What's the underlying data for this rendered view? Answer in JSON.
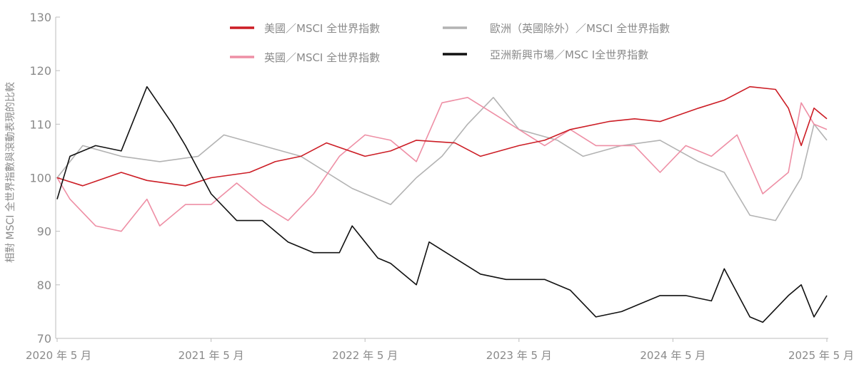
{
  "chart_data": {
    "type": "line",
    "ylabel": "相對 MSCI 全世界指數與滾動表現的比較",
    "ylim": [
      70,
      130
    ],
    "yticks": [
      70,
      80,
      90,
      100,
      110,
      120,
      130
    ],
    "x_start": "2020-05",
    "x_end": "2025-05",
    "xticks": [
      "2020 年 5 月",
      "2021 年 5 月",
      "2022 年 5 月",
      "2023 年 5 月",
      "2024 年 5 月",
      "2025 年 5 月"
    ],
    "grid": false,
    "legend_position": "top-center",
    "series": [
      {
        "name": "美國／MSCI 全世界指數",
        "color": "#cc1d25",
        "x": [
          "2020-05",
          "2020-07",
          "2020-10",
          "2020-12",
          "2021-03",
          "2021-05",
          "2021-08",
          "2021-10",
          "2021-12",
          "2022-02",
          "2022-05",
          "2022-07",
          "2022-09",
          "2022-12",
          "2023-02",
          "2023-05",
          "2023-07",
          "2023-09",
          "2023-12",
          "2024-02",
          "2024-04",
          "2024-07",
          "2024-09",
          "2024-11",
          "2025-01",
          "2025-02",
          "2025-03",
          "2025-04",
          "2025-05"
        ],
        "y": [
          100,
          98.5,
          101,
          99.5,
          98.5,
          100,
          101,
          103,
          104,
          106.5,
          104,
          105,
          107,
          106.5,
          104,
          106,
          107,
          109,
          110.5,
          111,
          110.5,
          113,
          114.5,
          117,
          116.5,
          113,
          106,
          113,
          111
        ]
      },
      {
        "name": "英國／MSCI 全世界指數",
        "color": "#ee8fa5",
        "x": [
          "2020-05",
          "2020-06",
          "2020-08",
          "2020-10",
          "2020-12",
          "2021-01",
          "2021-03",
          "2021-05",
          "2021-07",
          "2021-09",
          "2021-11",
          "2022-01",
          "2022-03",
          "2022-05",
          "2022-07",
          "2022-09",
          "2022-11",
          "2023-01",
          "2023-03",
          "2023-05",
          "2023-07",
          "2023-09",
          "2023-11",
          "2024-02",
          "2024-04",
          "2024-06",
          "2024-08",
          "2024-10",
          "2024-12",
          "2025-02",
          "2025-03",
          "2025-04",
          "2025-05"
        ],
        "y": [
          100,
          96,
          91,
          90,
          96,
          91,
          95,
          95,
          99,
          95,
          92,
          97,
          104,
          108,
          107,
          103,
          114,
          115,
          112,
          109,
          106,
          109,
          106,
          106,
          101,
          106,
          104,
          108,
          97,
          101,
          114,
          110,
          109
        ]
      },
      {
        "name": "歐洲（英國除外）／MSCI 全世界指數",
        "color": "#b3b3b3",
        "x": [
          "2020-05",
          "2020-07",
          "2020-10",
          "2021-01",
          "2021-04",
          "2021-06",
          "2021-09",
          "2021-12",
          "2022-02",
          "2022-04",
          "2022-07",
          "2022-09",
          "2022-11",
          "2023-01",
          "2023-03",
          "2023-05",
          "2023-08",
          "2023-10",
          "2024-01",
          "2024-04",
          "2024-07",
          "2024-09",
          "2024-11",
          "2025-01",
          "2025-03",
          "2025-04",
          "2025-05"
        ],
        "y": [
          100,
          106,
          104,
          103,
          104,
          108,
          106,
          104,
          101,
          98,
          95,
          100,
          104,
          110,
          115,
          109,
          107,
          104,
          106,
          107,
          103,
          101,
          93,
          92,
          100,
          110,
          107
        ]
      },
      {
        "name": "亞洲新興市場／MSC I全世界指數",
        "color": "#111111",
        "x": [
          "2020-05",
          "2020-06",
          "2020-08",
          "2020-10",
          "2020-12",
          "2021-02",
          "2021-03",
          "2021-05",
          "2021-07",
          "2021-09",
          "2021-11",
          "2022-01",
          "2022-03",
          "2022-04",
          "2022-06",
          "2022-07",
          "2022-09",
          "2022-10",
          "2022-12",
          "2023-02",
          "2023-04",
          "2023-07",
          "2023-09",
          "2023-11",
          "2024-01",
          "2024-04",
          "2024-06",
          "2024-08",
          "2024-09",
          "2024-11",
          "2024-12",
          "2025-02",
          "2025-03",
          "2025-04",
          "2025-05"
        ],
        "y": [
          96,
          104,
          106,
          105,
          117,
          110,
          106,
          97,
          92,
          92,
          88,
          86,
          86,
          91,
          85,
          84,
          80,
          88,
          85,
          82,
          81,
          81,
          79,
          74,
          75,
          78,
          78,
          77,
          83,
          74,
          73,
          78,
          80,
          74,
          78
        ]
      }
    ]
  }
}
